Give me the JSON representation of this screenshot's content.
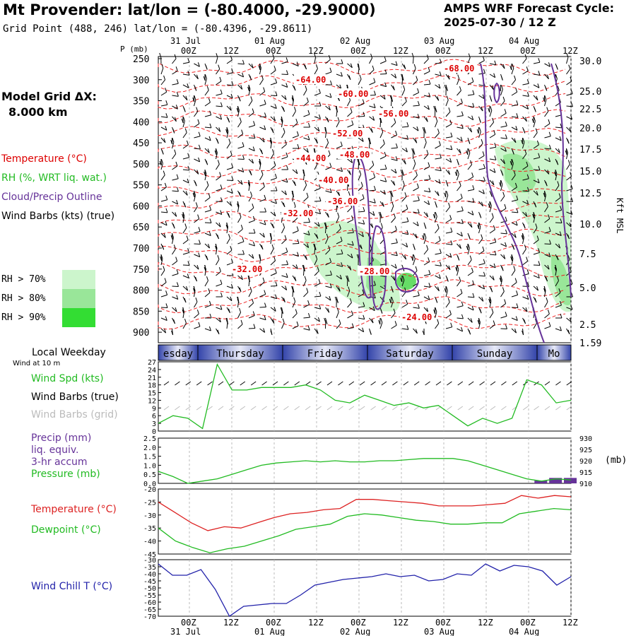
{
  "header": {
    "title": "Mt Provender:  lat/lon = (-80.4000, -29.9000)",
    "subtitle": "Grid Point (488, 246) lat/lon = (-80.4396, -29.8611)",
    "cycle_label": "AMPS WRF Forecast Cycle:",
    "cycle_value": "2025-07-30 / 12  Z"
  },
  "left_panel": {
    "grid_label": "Model Grid ΔX:",
    "grid_value": "8.000 km",
    "legend": {
      "temperature": "Temperature (°C)",
      "rh": "RH (%, WRT liq. wat.)",
      "cloud": "Cloud/Precip Outline",
      "wind": "Wind Barbs (kts) (true)"
    },
    "rh_levels": [
      {
        "label": "RH > 70%",
        "color": "#ccf5cc"
      },
      {
        "label": "RH > 80%",
        "color": "#99e699"
      },
      {
        "label": "RH > 90%",
        "color": "#33dd33"
      }
    ],
    "local_weekday": "Local Weekday",
    "wind_at": "Wind at 10 m"
  },
  "colors": {
    "temperature": "#dd0000",
    "cloud": "#663399",
    "wind_speed": "#22bb22",
    "pressure": "#22bb22",
    "dewpoint": "#22bb22",
    "temp_line": "#dd2222",
    "windchill": "#2222aa",
    "precip": "#663399"
  },
  "time_axis": {
    "top_dates": [
      "31 Jul",
      "01 Aug",
      "02 Aug",
      "03 Aug",
      "04 Aug"
    ],
    "hour_labels": [
      "00Z",
      "12Z",
      "00Z",
      "12Z",
      "00Z",
      "12Z",
      "00Z",
      "12Z",
      "00Z",
      "12Z"
    ]
  },
  "weekdays": [
    "esday",
    "Thursday",
    "Friday",
    "Saturday",
    "Sunday",
    "Mo"
  ],
  "chart_data": [
    {
      "type": "line",
      "title": "",
      "ylabel": "P (mb)",
      "ylabel_right": "Kft MSL",
      "y_ticks": [
        "250",
        "300",
        "350",
        "400",
        "450",
        "500",
        "550",
        "600",
        "650",
        "700",
        "750",
        "800",
        "850",
        "900"
      ],
      "y_ticks_right": [
        "30.0",
        "25.0",
        "22.5",
        "20.0",
        "17.5",
        "15.0",
        "12.5",
        "10.0",
        "7.5",
        "5.0",
        "2.5",
        "1.59"
      ],
      "contour_labels": [
        "-64.00",
        "-60.00",
        "-68.00",
        "-56.00",
        "-52.00",
        "-48.00",
        "-44.00",
        "-40.00",
        "-36.00",
        "-32.00",
        "-32.00",
        "-28.00",
        "-24.00"
      ]
    },
    {
      "type": "line",
      "series": [
        {
          "name": "Wind Spd (kts)",
          "values": [
            3,
            6,
            5,
            1,
            26,
            16,
            16,
            17,
            17,
            17,
            18,
            16,
            12,
            11,
            14,
            12,
            10,
            11,
            9,
            10,
            6,
            2,
            5,
            3,
            5,
            20,
            18,
            11,
            12
          ]
        }
      ],
      "legend": [
        "Wind Spd (kts)",
        "Wind Barbs (true)",
        "Wind Barbs (grid)"
      ],
      "y_ticks": [
        "27",
        "24",
        "21",
        "18",
        "15",
        "12",
        "9",
        "6",
        "3",
        "0"
      ],
      "ylim": [
        0,
        27
      ]
    },
    {
      "type": "line",
      "series": [
        {
          "name": "Pressure (mb)",
          "values": [
            915.3,
            913,
            910,
            911,
            912,
            914,
            916,
            918,
            919,
            919.5,
            920,
            919.5,
            920,
            919.5,
            919.5,
            920,
            920,
            920.5,
            921,
            921,
            921,
            920,
            918,
            916,
            914,
            912,
            911,
            912,
            911.5
          ]
        }
      ],
      "precip_values": [
        0,
        0,
        0,
        0,
        0,
        0,
        0,
        0,
        0,
        0,
        0,
        0,
        0,
        0,
        0,
        0,
        0,
        0,
        0,
        0,
        0,
        0,
        0,
        0,
        0,
        0,
        0.15,
        0.3,
        0.3
      ],
      "legend": [
        "Precip (mm)",
        "liq. equiv.",
        "3-hr accum",
        "Pressure (mb)"
      ],
      "y_ticks": [
        "2.5",
        "2.0",
        "1.5",
        "1.0",
        "0.5",
        "0.0"
      ],
      "y_ticks_right": [
        "930",
        "925",
        "920",
        "915",
        "910"
      ],
      "right_unit": "(mb)"
    },
    {
      "type": "line",
      "series": [
        {
          "name": "Temperature (°C)",
          "values": [
            -25,
            -29,
            -33,
            -36,
            -34.5,
            -35,
            -33,
            -31,
            -29.5,
            -29,
            -28,
            -27.5,
            -24,
            -24,
            -24.5,
            -25,
            -25.5,
            -26.5,
            -26.5,
            -26.5,
            -26,
            -25.5,
            -22.5,
            -23.5,
            -22.5,
            -23
          ]
        },
        {
          "name": "Dewpoint (°C)",
          "values": [
            -35,
            -40,
            -42.5,
            -44.5,
            -43,
            -42,
            -40,
            -38,
            -35.5,
            -34.5,
            -33.5,
            -30.5,
            -29.5,
            -30,
            -31,
            -32,
            -32.5,
            -33.5,
            -33.5,
            -33,
            -33,
            -29.5,
            -28.5,
            -27.5,
            -28
          ]
        }
      ],
      "y_ticks": [
        "-20",
        "-25",
        "-30",
        "-35",
        "-40",
        "-45"
      ],
      "ylim": [
        -45,
        -20
      ]
    },
    {
      "type": "line",
      "series": [
        {
          "name": "Wind Chill T (°C)",
          "values": [
            -33,
            -41,
            -41,
            -37,
            -51,
            -70,
            -63,
            -62,
            -61,
            -61,
            -55,
            -48,
            -46,
            -44,
            -43,
            -42,
            -40,
            -42,
            -41,
            -45,
            -44,
            -40,
            -41,
            -33,
            -38,
            -34,
            -35,
            -38,
            -48,
            -42
          ]
        }
      ],
      "y_ticks": [
        "-30",
        "-35",
        "-40",
        "-45",
        "-50",
        "-55",
        "-60",
        "-65",
        "-70"
      ],
      "ylim": [
        -70,
        -30
      ]
    }
  ]
}
